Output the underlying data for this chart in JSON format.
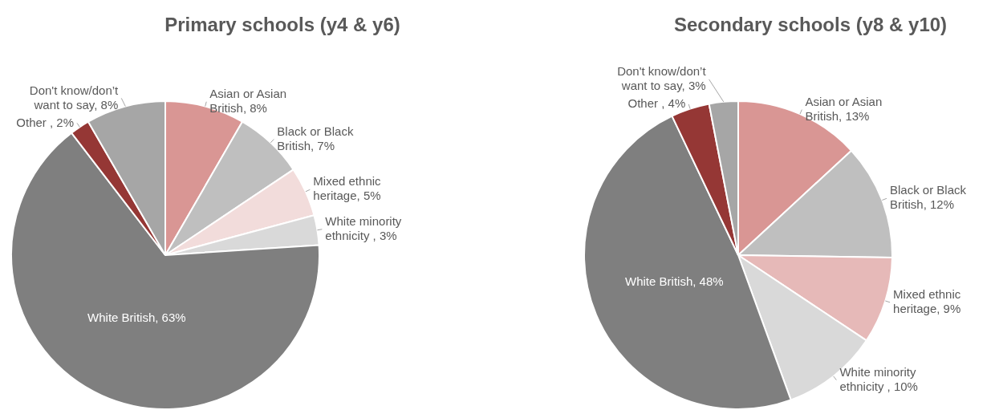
{
  "chart_data": [
    {
      "type": "pie",
      "title": "Primary schools (y4 & y6)",
      "categories": [
        "Asian or Asian British",
        "Black or Black British",
        "Mixed ethnic heritage",
        "White minority ethnicity ",
        "White British",
        "Other ",
        "Don't know/don’t want to say"
      ],
      "values": [
        8,
        7,
        5,
        3,
        63,
        2,
        8
      ],
      "value_labels": [
        "8%",
        "7%",
        "5%",
        "3%",
        "63%",
        "2%",
        "8%"
      ],
      "colors": [
        "#d99694",
        "#bfbfbf",
        "#f2dcdb",
        "#d9d9d9",
        "#7f7f7f",
        "#953735",
        "#a6a6a6"
      ],
      "legend": false
    },
    {
      "type": "pie",
      "title": "Secondary schools (y8 & y10)",
      "categories": [
        "Asian or Asian British",
        "Black or Black British",
        "Mixed ethnic heritage",
        "White minority ethnicity ",
        "White British",
        "Other ",
        "Don't know/don’t want to say"
      ],
      "values": [
        13,
        12,
        9,
        10,
        48,
        4,
        3
      ],
      "value_labels": [
        "13%",
        "12%",
        "9%",
        "10%",
        "48%",
        "4%",
        "3%"
      ],
      "colors": [
        "#d99694",
        "#bfbfbf",
        "#e6b9b8",
        "#d9d9d9",
        "#7f7f7f",
        "#953735",
        "#a6a6a6"
      ],
      "legend": false
    }
  ]
}
